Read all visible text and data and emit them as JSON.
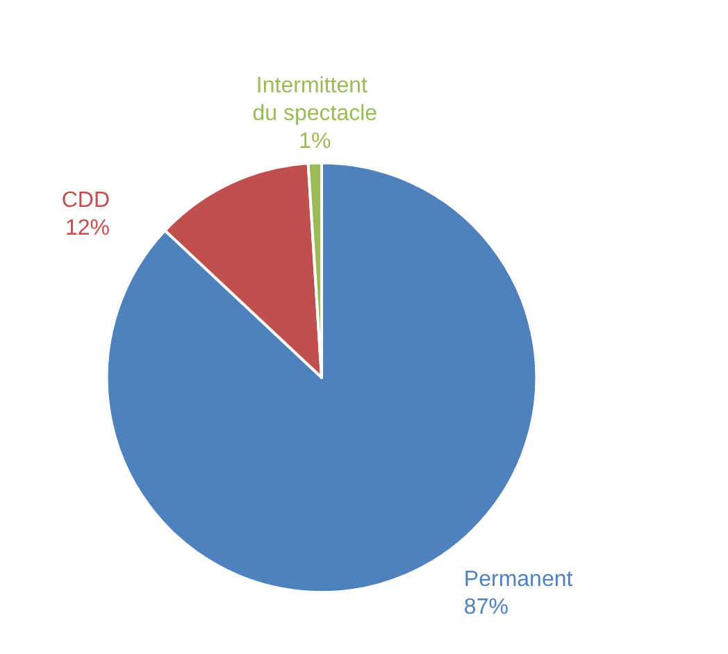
{
  "chart_data": {
    "type": "pie",
    "categories": [
      "Permanent",
      "CDD",
      "Intermittent du spectacle"
    ],
    "values": [
      87,
      12,
      1
    ],
    "value_labels": [
      "87%",
      "12%",
      "1%"
    ],
    "colors": [
      "#4f81bd",
      "#c0504d",
      "#9bbb59"
    ],
    "legend": false
  }
}
